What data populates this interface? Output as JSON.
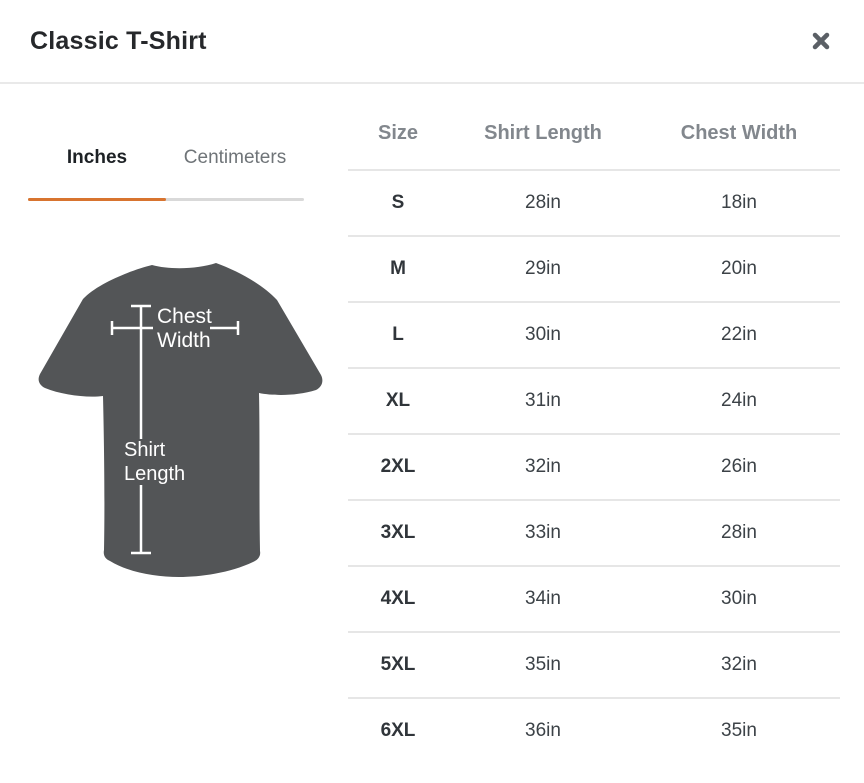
{
  "modal": {
    "title": "Classic T-Shirt"
  },
  "tabs": {
    "inches_label": "Inches",
    "centimeters_label": "Centimeters",
    "active_tab": "Inches"
  },
  "diagram": {
    "chest_label_line1": "Chest",
    "chest_label_line2": "Width",
    "length_label_line1": "Shirt",
    "length_label_line2": "Length"
  },
  "table": {
    "columns": [
      "Size",
      "Shirt Length",
      "Chest Width"
    ],
    "unit": "in",
    "rows": [
      [
        "S",
        "28in",
        "18in"
      ],
      [
        "M",
        "29in",
        "20in"
      ],
      [
        "L",
        "30in",
        "22in"
      ],
      [
        "XL",
        "31in",
        "24in"
      ],
      [
        "2XL",
        "32in",
        "26in"
      ],
      [
        "3XL",
        "33in",
        "28in"
      ],
      [
        "4XL",
        "34in",
        "30in"
      ],
      [
        "5XL",
        "35in",
        "32in"
      ],
      [
        "6XL",
        "36in",
        "35in"
      ]
    ]
  },
  "colors": {
    "accent": "#d8742f",
    "tab_track": "#d9d9d9",
    "shirt_fill": "#535557",
    "divider": "#e6e6e6",
    "close_icon": "#5b6066"
  }
}
